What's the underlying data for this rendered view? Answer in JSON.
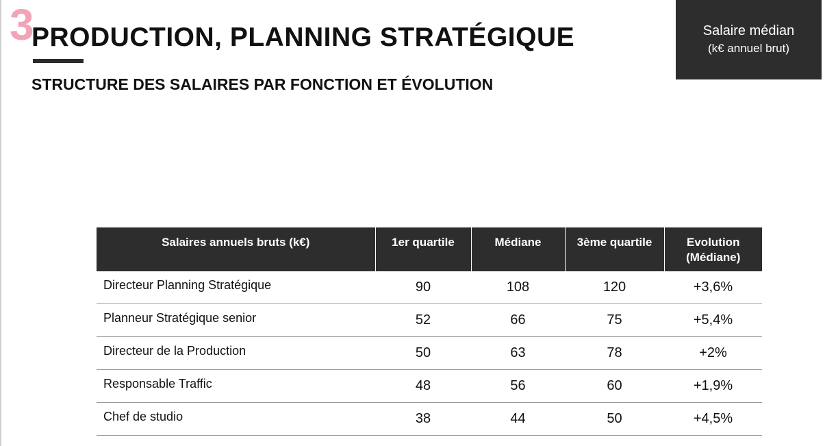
{
  "section": {
    "number": "3",
    "title": "PRODUCTION, PLANNING STRATÉGIQUE",
    "subtitle": "STRUCTURE DES SALAIRES PAR FONCTION ET ÉVOLUTION"
  },
  "unit_box": {
    "line1": "Salaire médian",
    "line2": "(k€ annuel brut)"
  },
  "colors": {
    "accent_pink": "#f2a3b8",
    "dark_header": "#2d2d2d"
  },
  "table": {
    "headers": [
      "Salaires annuels bruts (k€)",
      "1er quartile",
      "Médiane",
      "3ème quartile",
      "Evolution (Médiane)"
    ],
    "rows": [
      {
        "fonction": "Directeur Planning Stratégique",
        "q1": "90",
        "mediane": "108",
        "q3": "120",
        "evolution": "+3,6%"
      },
      {
        "fonction": "Planneur Stratégique senior",
        "q1": "52",
        "mediane": "66",
        "q3": "75",
        "evolution": "+5,4%"
      },
      {
        "fonction": "Directeur de la Production",
        "q1": "50",
        "mediane": "63",
        "q3": "78",
        "evolution": "+2%"
      },
      {
        "fonction": "Responsable Traffic",
        "q1": "48",
        "mediane": "56",
        "q3": "60",
        "evolution": "+1,9%"
      },
      {
        "fonction": "Chef de studio",
        "q1": "38",
        "mediane": "44",
        "q3": "50",
        "evolution": "+4,5%"
      }
    ]
  }
}
